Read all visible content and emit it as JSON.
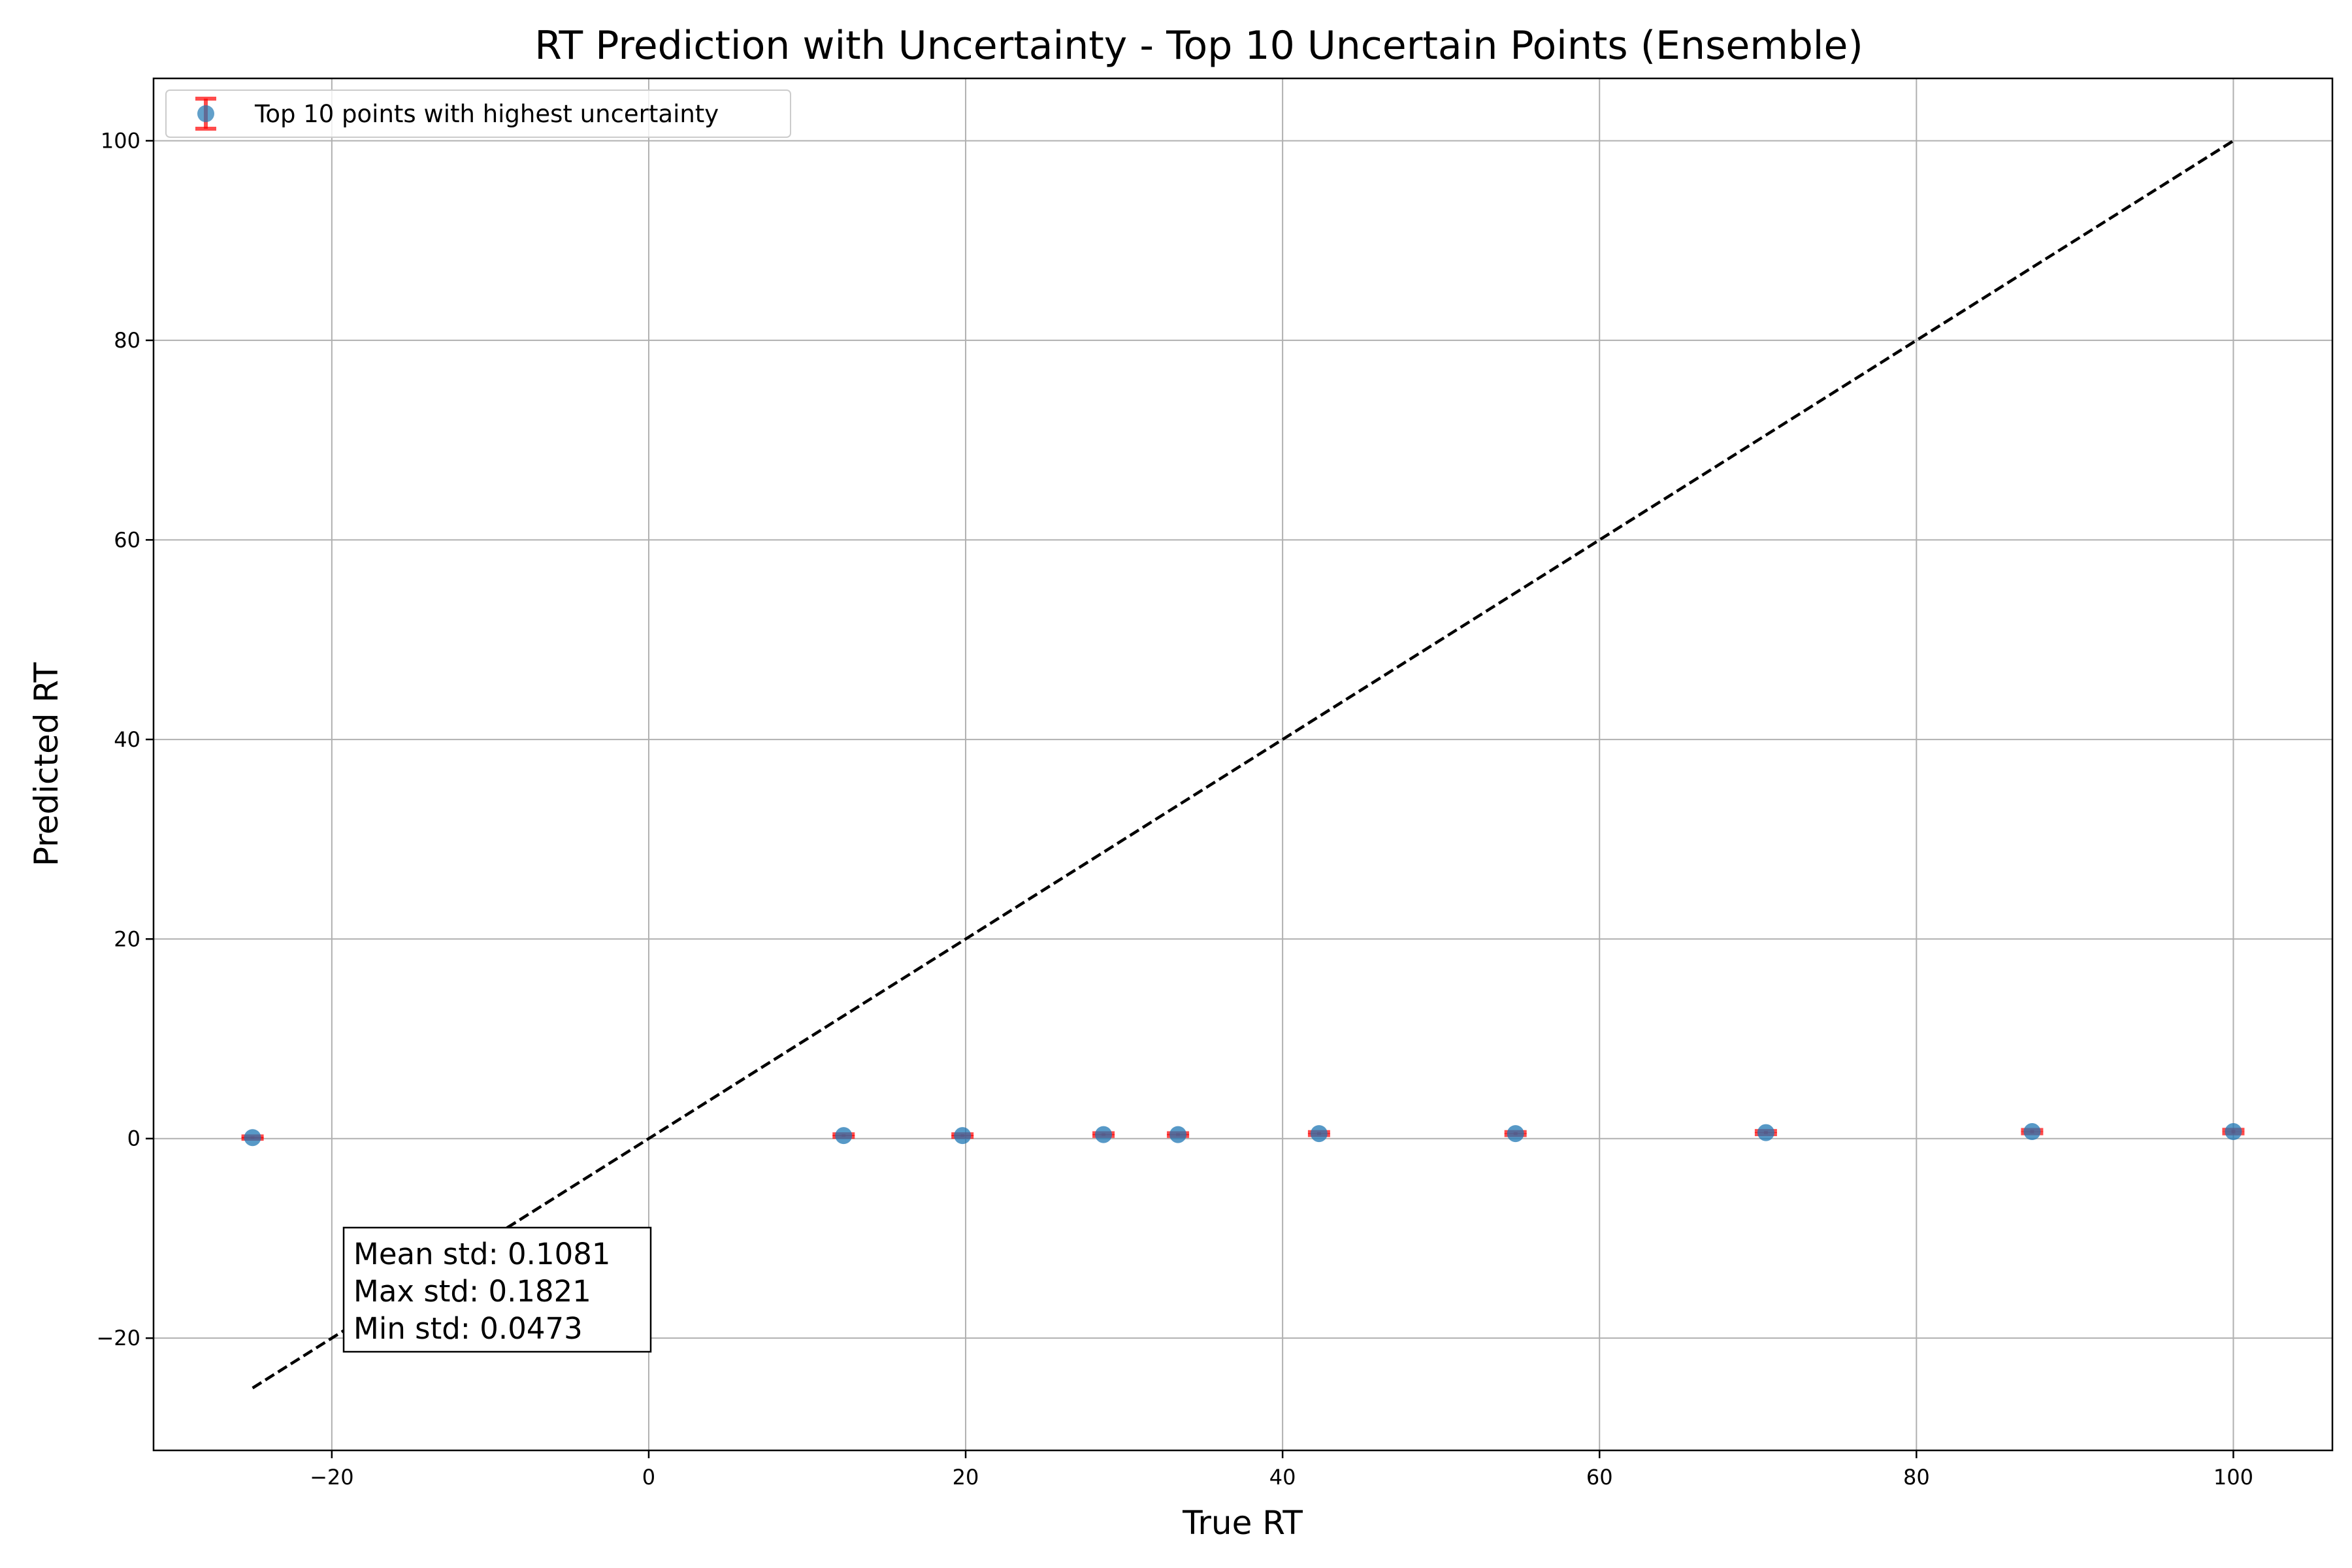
{
  "chart_data": {
    "type": "scatter",
    "title": "RT Prediction with Uncertainty - Top 10 Uncertain Points (Ensemble)",
    "xlabel": "True RT",
    "ylabel": "Predicted RT",
    "xlim": [
      -31.25,
      106.25
    ],
    "ylim": [
      -31.25,
      106.25
    ],
    "xticks": [
      -20,
      0,
      20,
      40,
      60,
      80,
      100
    ],
    "yticks": [
      -20,
      0,
      20,
      40,
      60,
      80,
      100
    ],
    "xtick_labels": [
      "−20",
      "0",
      "20",
      "40",
      "60",
      "80",
      "100"
    ],
    "ytick_labels": [
      "−20",
      "0",
      "20",
      "40",
      "60",
      "80",
      "100"
    ],
    "grid": true,
    "legend_position": "top-left",
    "series": [
      {
        "name": "Top 10 points with highest uncertainty",
        "x": [
          -25.0,
          12.3,
          19.8,
          28.7,
          33.4,
          42.3,
          54.7,
          70.5,
          87.3,
          100.0
        ],
        "y": [
          0.1,
          0.3,
          0.3,
          0.4,
          0.4,
          0.5,
          0.5,
          0.6,
          0.7,
          0.7
        ],
        "yerr": [
          0.12,
          0.13,
          0.13,
          0.14,
          0.14,
          0.15,
          0.15,
          0.16,
          0.17,
          0.18
        ],
        "marker_color": "#1f77b4",
        "error_color": "#ff0000"
      }
    ],
    "reference_line": {
      "x": [
        -25,
        100
      ],
      "y": [
        -25,
        100
      ],
      "style": "dashed",
      "color": "#000000"
    },
    "annotation": [
      "Mean std: 0.1081",
      "Max std: 0.1821",
      "Min std: 0.0473"
    ]
  }
}
